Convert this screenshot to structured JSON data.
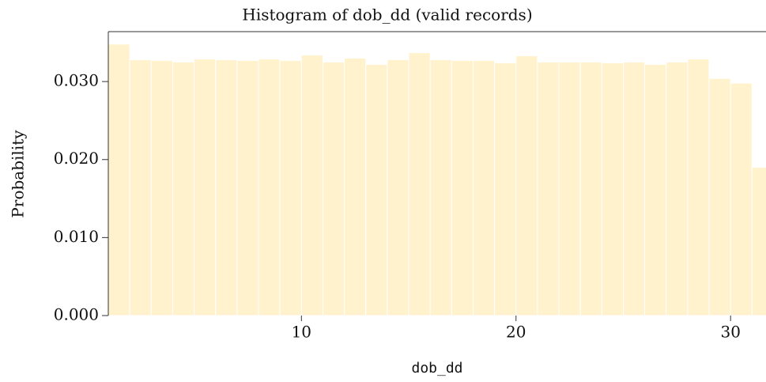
{
  "chart_data": {
    "type": "histogram",
    "title": "Histogram of dob_dd (valid records)",
    "xlabel": "dob_dd",
    "ylabel": "Probability",
    "bins": [
      1,
      2,
      3,
      4,
      5,
      6,
      7,
      8,
      9,
      10,
      11,
      12,
      13,
      14,
      15,
      16,
      17,
      18,
      19,
      20,
      21,
      22,
      23,
      24,
      25,
      26,
      27,
      28,
      29,
      30,
      31,
      32
    ],
    "values": [
      0.0348,
      0.0328,
      0.0327,
      0.0325,
      0.0329,
      0.0328,
      0.0327,
      0.0329,
      0.0327,
      0.0334,
      0.0325,
      0.033,
      0.0322,
      0.0328,
      0.0337,
      0.0328,
      0.0327,
      0.0327,
      0.0324,
      0.0333,
      0.0325,
      0.0325,
      0.0325,
      0.0324,
      0.0325,
      0.0322,
      0.0325,
      0.0329,
      0.0304,
      0.0298,
      0.019
    ],
    "color": "#fff2cc",
    "xlim": [
      1,
      31.65
    ],
    "ylim": [
      0,
      0.0364
    ],
    "xticks": [
      10,
      20,
      30
    ],
    "yticks": [
      {
        "value": 0,
        "label": "0.000"
      },
      {
        "value": 0.01,
        "label": "0.010"
      },
      {
        "value": 0.02,
        "label": "0.020"
      },
      {
        "value": 0.03,
        "label": "0.030"
      }
    ]
  }
}
